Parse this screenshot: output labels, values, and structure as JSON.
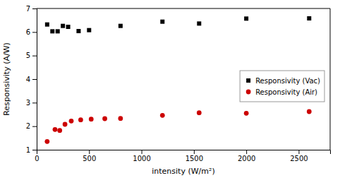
{
  "chart_data": {
    "type": "scatter",
    "xlabel": "intensity (W/m²)",
    "ylabel": "Responsivity (A/W)",
    "xlim": [
      0,
      2800
    ],
    "xticks": [
      0,
      500,
      1000,
      1500,
      2000,
      2500
    ],
    "ylim": [
      1,
      7
    ],
    "yticks": [
      1,
      2,
      3,
      4,
      5,
      6,
      7
    ],
    "grid": false,
    "legend": "right",
    "series": [
      {
        "name": "Responsivity (Vac)",
        "color": "#000000",
        "marker": "square",
        "x": [
          100,
          150,
          200,
          250,
          300,
          400,
          500,
          800,
          1200,
          1550,
          2000,
          2600
        ],
        "values": [
          6.32,
          6.03,
          6.03,
          6.26,
          6.22,
          6.04,
          6.08,
          6.26,
          6.44,
          6.36,
          6.57,
          6.58
        ]
      },
      {
        "name": "Responsivity (Air)",
        "color": "#cc0000",
        "marker": "circle",
        "x": [
          100,
          175,
          220,
          270,
          330,
          420,
          520,
          650,
          800,
          1200,
          1550,
          2000,
          2600
        ],
        "values": [
          1.35,
          1.86,
          1.82,
          2.08,
          2.22,
          2.27,
          2.3,
          2.32,
          2.33,
          2.46,
          2.57,
          2.55,
          2.62
        ]
      }
    ]
  }
}
